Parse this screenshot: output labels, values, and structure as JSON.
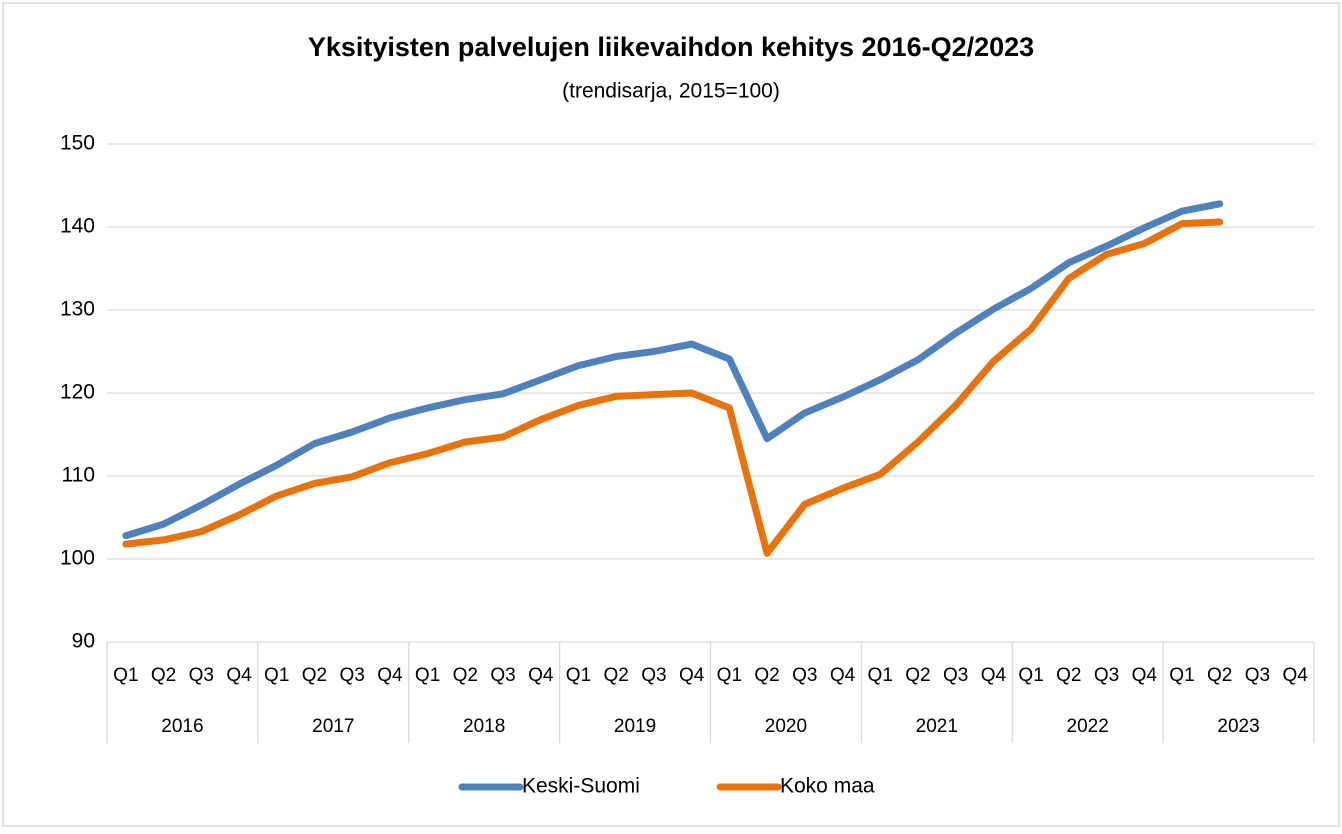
{
  "chart_data": {
    "type": "line",
    "title": "Yksityisten palvelujen liikevaihdon kehitys 2016-Q2/2023",
    "subtitle": "(trendisarja, 2015=100)",
    "categories": [
      "Q1",
      "Q2",
      "Q3",
      "Q4",
      "Q1",
      "Q2",
      "Q3",
      "Q4",
      "Q1",
      "Q2",
      "Q3",
      "Q4",
      "Q1",
      "Q2",
      "Q3",
      "Q4",
      "Q1",
      "Q2",
      "Q3",
      "Q4",
      "Q1",
      "Q2",
      "Q3",
      "Q4",
      "Q1",
      "Q2",
      "Q3",
      "Q4",
      "Q1",
      "Q2",
      "Q3",
      "Q4"
    ],
    "category_groups": [
      "2016",
      "2017",
      "2018",
      "2019",
      "2020",
      "2021",
      "2022",
      "2023"
    ],
    "series": [
      {
        "name": "Keski-Suomi",
        "color": "#4f81bd",
        "values": [
          102.8,
          104.2,
          106.5,
          109,
          111.3,
          113.9,
          115.3,
          117,
          118.2,
          119.2,
          119.9,
          121.6,
          123.3,
          124.4,
          125,
          125.9,
          124.1,
          114.5,
          117.6,
          119.5,
          121.6,
          124,
          127.2,
          130.1,
          132.6,
          135.7,
          137.7,
          139.9,
          141.9,
          142.8,
          null,
          null
        ]
      },
      {
        "name": "Koko maa",
        "color": "#e8720c",
        "values": [
          101.8,
          102.3,
          103.3,
          105.3,
          107.6,
          109.1,
          109.9,
          111.6,
          112.7,
          114.1,
          114.7,
          116.8,
          118.5,
          119.6,
          119.8,
          120,
          118.2,
          100.7,
          106.6,
          108.5,
          110.2,
          114.1,
          118.5,
          123.8,
          127.7,
          133.8,
          136.7,
          138,
          140.4,
          140.6,
          null,
          null
        ]
      }
    ],
    "ylim": [
      90,
      150
    ],
    "yticks": [
      90,
      100,
      110,
      120,
      130,
      140,
      150
    ],
    "grid": true,
    "legend": "bottom"
  }
}
